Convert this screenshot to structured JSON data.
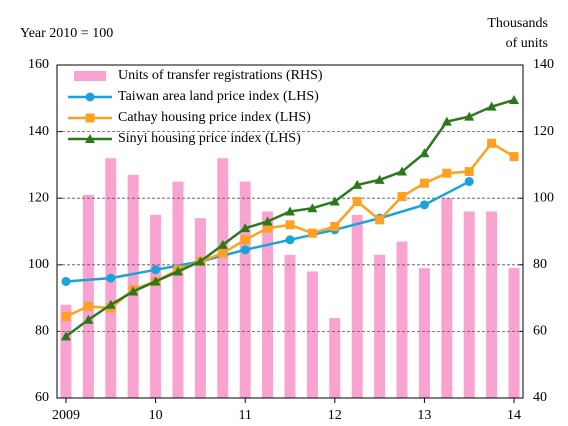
{
  "chart_data": {
    "type": "combo",
    "ylabel": "Year 2010 = 100",
    "y2label": [
      "Thousands",
      "of units"
    ],
    "xlim": [
      2008.9,
      2014.1
    ],
    "xticks": [
      {
        "value": 2009,
        "label": "2009"
      },
      {
        "value": 2010,
        "label": "10"
      },
      {
        "value": 2011,
        "label": "11"
      },
      {
        "value": 2012,
        "label": "12"
      },
      {
        "value": 2013,
        "label": "13"
      },
      {
        "value": 2014,
        "label": "14"
      }
    ],
    "ylim": [
      60,
      160
    ],
    "yticks": [
      60,
      80,
      100,
      120,
      140,
      160
    ],
    "y2lim": [
      40,
      140
    ],
    "y2ticks": [
      40,
      60,
      80,
      100,
      120,
      140
    ],
    "grid": true,
    "legend": "upper left",
    "series": [
      {
        "name": "Units of transfer registrations (RHS)",
        "type": "bar",
        "axis": "y2",
        "color": "#f9a3d1",
        "x": [
          2009,
          2009.25,
          2009.5,
          2009.75,
          2010,
          2010.25,
          2010.5,
          2010.75,
          2011,
          2011.25,
          2011.5,
          2011.75,
          2012,
          2012.25,
          2012.5,
          2012.75,
          2013,
          2013.25,
          2013.5,
          2013.75,
          2014
        ],
        "values": [
          68,
          101,
          112,
          107,
          95,
          105,
          94,
          112,
          105,
          96,
          83,
          78,
          64,
          95,
          83,
          87,
          79,
          100,
          96,
          96,
          79
        ]
      },
      {
        "name": "Taiwan area land price index (LHS)",
        "type": "line",
        "marker": "circle",
        "color": "#1aa3d9",
        "x": [
          2009,
          2009.5,
          2010,
          2010.5,
          2011,
          2011.5,
          2012,
          2012.5,
          2013,
          2013.5
        ],
        "values": [
          95,
          96,
          98.5,
          101,
          104.5,
          107.5,
          110.5,
          114,
          118,
          125
        ]
      },
      {
        "name": "Cathay housing price index (LHS)",
        "type": "line",
        "marker": "square",
        "color": "#ffa020",
        "x": [
          2009,
          2009.25,
          2009.5,
          2009.75,
          2010,
          2010.25,
          2010.5,
          2010.75,
          2011,
          2011.25,
          2011.5,
          2011.75,
          2012,
          2012.25,
          2012.5,
          2012.75,
          2013,
          2013.25,
          2013.5,
          2013.75,
          2014
        ],
        "values": [
          84.5,
          87.5,
          87,
          92.5,
          95,
          98.5,
          101,
          103.5,
          107.5,
          111,
          112,
          109.5,
          111.5,
          119,
          113.5,
          120.5,
          124.5,
          127.5,
          128,
          136.5,
          132.5
        ]
      },
      {
        "name": "Sinyi housing price index (LHS)",
        "type": "line",
        "marker": "triangle",
        "color": "#2a7a1c",
        "x": [
          2009,
          2009.25,
          2009.5,
          2009.75,
          2010,
          2010.25,
          2010.5,
          2010.75,
          2011,
          2011.25,
          2011.5,
          2011.75,
          2012,
          2012.25,
          2012.5,
          2012.75,
          2013,
          2013.25,
          2013.5,
          2013.75,
          2014
        ],
        "values": [
          78.5,
          83.5,
          88,
          92,
          95,
          98,
          101,
          106,
          111,
          113,
          116,
          117,
          119,
          124,
          125.5,
          128,
          133.5,
          143,
          144.5,
          147.5,
          149.5
        ]
      }
    ]
  }
}
